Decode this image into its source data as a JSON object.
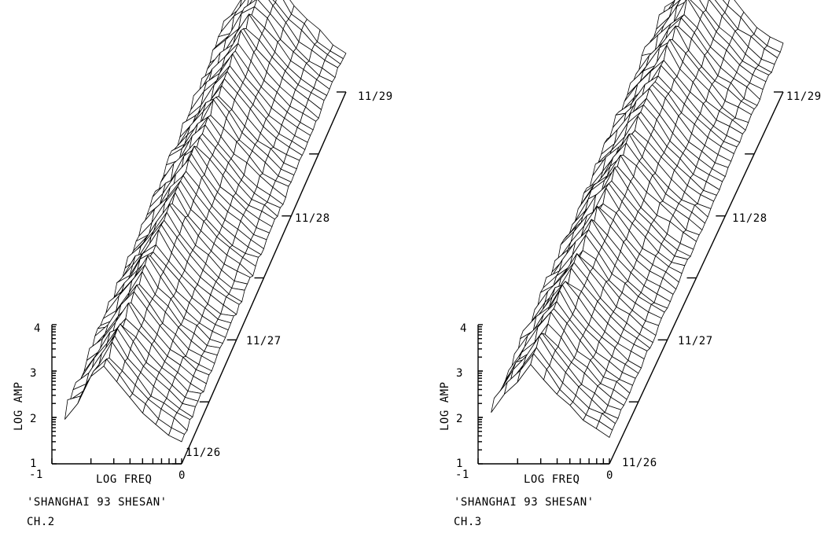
{
  "panels": [
    {
      "id": "ch2",
      "caption": "'SHANGHAI 93 SHESAN'",
      "channel": "CH.2",
      "ylabel": "LOG AMP",
      "xlabel": "LOG FREQ",
      "y_ticks": [
        "1",
        "2",
        "3",
        "4"
      ],
      "x_tick_left": "-1",
      "x_tick_right": "0",
      "date_ticks": [
        "11/26",
        "11/27",
        "11/28",
        "11/29"
      ]
    },
    {
      "id": "ch3",
      "caption": "'SHANGHAI 93 SHESAN'",
      "channel": "CH.3",
      "ylabel": "LOG AMP",
      "xlabel": "LOG FREQ",
      "y_ticks": [
        "1",
        "2",
        "3",
        "4"
      ],
      "x_tick_left": "-1",
      "x_tick_right": "0",
      "date_ticks": [
        "11/26",
        "11/27",
        "11/28",
        "11/29"
      ]
    }
  ],
  "chart_data": [
    {
      "type": "surface-3d",
      "title": "'SHANGHAI 93 SHESAN' CH.2",
      "xlabel": "LOG FREQ",
      "ylabel": "LOG AMP",
      "zlabel": "",
      "xlim": [
        -1,
        0
      ],
      "ylim": [
        1,
        4
      ],
      "dates": [
        "11/26",
        "11/27",
        "11/28",
        "11/29"
      ],
      "freq_log": [
        -0.9,
        -0.8,
        -0.7,
        -0.6,
        -0.5,
        -0.4,
        -0.3,
        -0.2,
        -0.1,
        0.0
      ],
      "profile_amp_log": [
        2.1,
        2.4,
        2.75,
        3.1,
        2.75,
        2.4,
        2.1,
        1.85,
        1.65,
        1.5
      ],
      "peak_amp_log_trend": [
        3.1,
        3.25,
        3.45,
        3.7
      ],
      "grid": false
    },
    {
      "type": "surface-3d",
      "title": "'SHANGHAI 93 SHESAN' CH.3",
      "xlabel": "LOG FREQ",
      "ylabel": "LOG AMP",
      "zlabel": "",
      "xlim": [
        -1,
        0
      ],
      "ylim": [
        1,
        4
      ],
      "dates": [
        "11/26",
        "11/27",
        "11/28",
        "11/29"
      ],
      "freq_log": [
        -0.9,
        -0.8,
        -0.7,
        -0.6,
        -0.5,
        -0.4,
        -0.3,
        -0.2,
        -0.1,
        0.0
      ],
      "profile_amp_log": [
        2.2,
        2.5,
        2.85,
        3.2,
        2.85,
        2.5,
        2.2,
        1.95,
        1.75,
        1.6
      ],
      "peak_amp_log_trend": [
        3.2,
        3.35,
        3.6,
        3.85
      ],
      "grid": false
    }
  ]
}
